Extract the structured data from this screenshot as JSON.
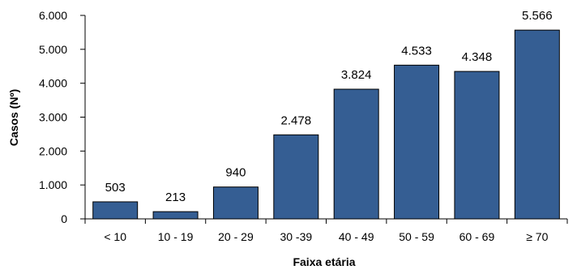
{
  "chart_data": {
    "type": "bar",
    "title": "",
    "xlabel": "Faixa etária",
    "ylabel": "Casos (Nº)",
    "categories": [
      "< 10",
      "10 - 19",
      "20 - 29",
      "30 -39",
      "40 - 49",
      "50 - 59",
      "60 - 69",
      "≥ 70"
    ],
    "values": [
      503,
      213,
      940,
      2478,
      3824,
      4533,
      4348,
      5566
    ],
    "value_labels": [
      "503",
      "213",
      "940",
      "2.478",
      "3.824",
      "4.533",
      "4.348",
      "5.566"
    ],
    "ylim": [
      0,
      6000
    ],
    "yticks": [
      0,
      1000,
      2000,
      3000,
      4000,
      5000,
      6000
    ],
    "ytick_labels": [
      "0",
      "1.000",
      "2.000",
      "3.000",
      "4.000",
      "5.000",
      "6.000"
    ],
    "grid": false,
    "legend": "none",
    "bar_color": "#355E93",
    "bar_edge_color": "#000000"
  }
}
